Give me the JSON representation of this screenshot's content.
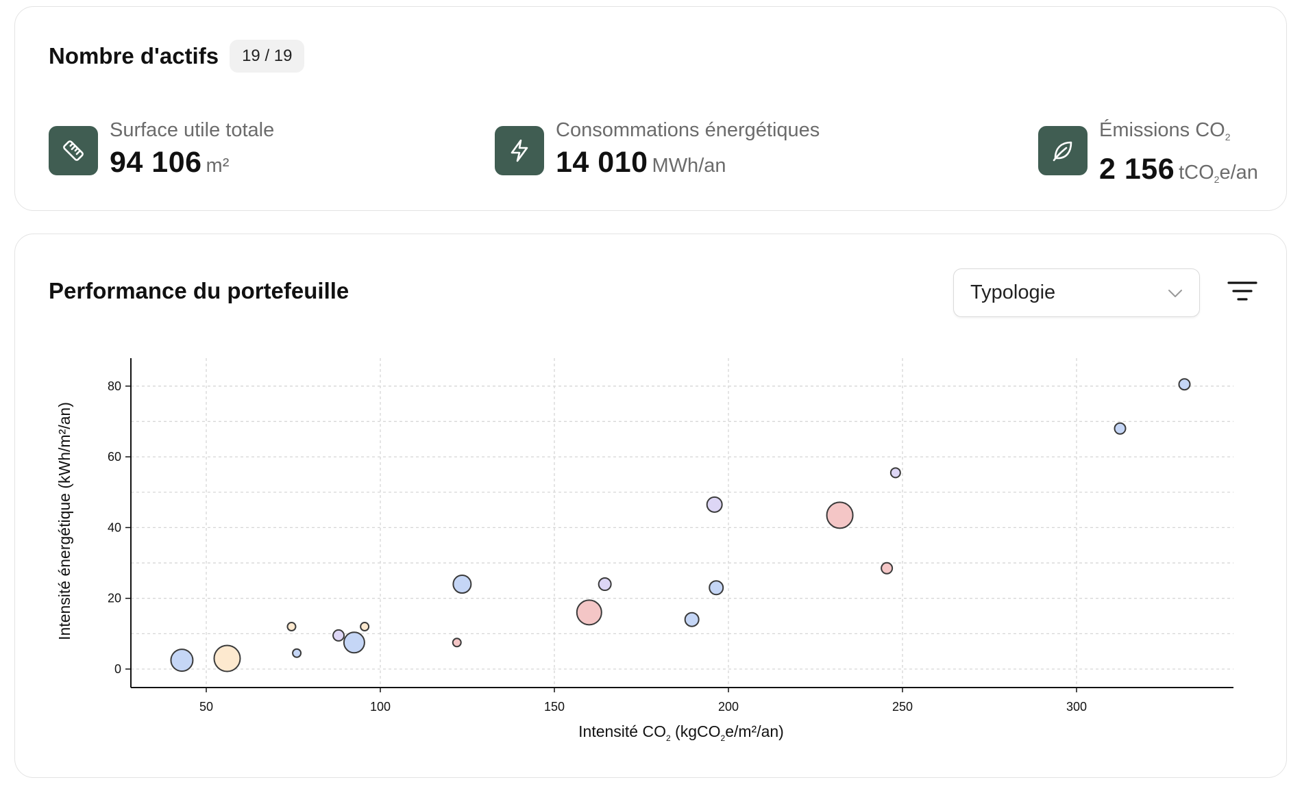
{
  "summary": {
    "title": "Nombre d'actifs",
    "count": "19 / 19",
    "kpis": [
      {
        "icon": "ruler-icon",
        "label": "Surface utile totale",
        "value": "94 106",
        "unit": "m²"
      },
      {
        "icon": "lightning-icon",
        "label": "Consommations énergétiques",
        "value": "14 010",
        "unit": "MWh/an"
      },
      {
        "icon": "leaf-icon",
        "label_main": "Émissions CO",
        "label_sub": "2",
        "value": "2 156",
        "unit_pre": "tCO",
        "unit_sub": "2",
        "unit_post": "e/an"
      }
    ],
    "icon_color": "#405d52"
  },
  "performance": {
    "title": "Performance du portefeuille",
    "select_value": "Typologie",
    "select_icon": "chevron-down-icon",
    "filter_icon": "filter-icon"
  },
  "chart_data": {
    "type": "scatter",
    "xlabel_pre": "Intensité CO",
    "xlabel_sub1": "2",
    "xlabel_mid": " (kgCO",
    "xlabel_sub2": "2",
    "xlabel_post": "e/m²/an)",
    "ylabel": "Intensité énergétique (kWh/m²/an)",
    "xlim": [
      28,
      345
    ],
    "ylim": [
      -5,
      88
    ],
    "xticks": [
      50,
      100,
      150,
      200,
      250,
      300
    ],
    "yticks": [
      0,
      20,
      40,
      60,
      80
    ],
    "grid": true,
    "points": [
      {
        "x": 43,
        "y": 2.5,
        "size": 16,
        "color": "blue"
      },
      {
        "x": 56,
        "y": 3,
        "size": 19,
        "color": "peach"
      },
      {
        "x": 74.5,
        "y": 12,
        "size": 6,
        "color": "peach"
      },
      {
        "x": 76,
        "y": 4.5,
        "size": 6,
        "color": "blue"
      },
      {
        "x": 88,
        "y": 9.5,
        "size": 8,
        "color": "lavender"
      },
      {
        "x": 92.5,
        "y": 7.5,
        "size": 15,
        "color": "blue"
      },
      {
        "x": 95.5,
        "y": 12,
        "size": 6,
        "color": "peach"
      },
      {
        "x": 122,
        "y": 7.5,
        "size": 6,
        "color": "pink"
      },
      {
        "x": 123.5,
        "y": 24,
        "size": 13,
        "color": "blue"
      },
      {
        "x": 160,
        "y": 16,
        "size": 18,
        "color": "pink"
      },
      {
        "x": 164.5,
        "y": 24,
        "size": 9,
        "color": "lavender"
      },
      {
        "x": 189.5,
        "y": 14,
        "size": 10,
        "color": "blue"
      },
      {
        "x": 196,
        "y": 46.5,
        "size": 11,
        "color": "lavender"
      },
      {
        "x": 196.5,
        "y": 23,
        "size": 10,
        "color": "blue"
      },
      {
        "x": 232,
        "y": 43.5,
        "size": 19,
        "color": "pink"
      },
      {
        "x": 245.5,
        "y": 28.5,
        "size": 8,
        "color": "pink"
      },
      {
        "x": 248,
        "y": 55.5,
        "size": 7,
        "color": "lavender"
      },
      {
        "x": 312.5,
        "y": 68,
        "size": 8,
        "color": "blue"
      },
      {
        "x": 331,
        "y": 80.5,
        "size": 8,
        "color": "blue"
      }
    ],
    "colors": {
      "blue": "#c5d6f6",
      "peach": "#fde9cf",
      "lavender": "#ddd6f5",
      "pink": "#f4c6c6",
      "stroke": "#3a3a3a"
    }
  }
}
